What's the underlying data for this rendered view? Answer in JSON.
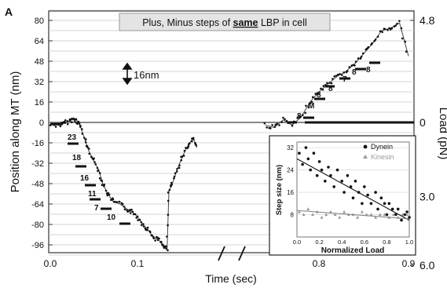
{
  "panel_label": "A",
  "title": "Plus, Minus steps of same LBP in cell",
  "title_parts": {
    "before": "Plus, Minus steps of ",
    "emph": "same",
    "after": " LBP in cell"
  },
  "scale_bar_label": "16nm",
  "chart_data": {
    "type": "line",
    "xlabel": "Time (sec)",
    "ylabel": "Position along MT (nm)",
    "y2label": "Load (pN)",
    "x_tick_labels": [
      "0.0",
      "0.1",
      "0.8",
      "0.9"
    ],
    "broken_x_axis": true,
    "y_ticks": [
      80,
      64,
      48,
      32,
      16,
      0,
      -16,
      -32,
      -48,
      -64,
      -80,
      -96
    ],
    "ylim": [
      -106,
      88
    ],
    "y2_ticks": [
      {
        "label": "4.8",
        "at_position_nm": 80
      },
      {
        "label": "0",
        "at_position_nm": 0
      },
      {
        "label": "3.0",
        "at_position_nm": -58
      },
      {
        "label": "6.0",
        "at_position_nm": -112
      }
    ],
    "grid": true,
    "step_size_labels": [
      "23",
      "18",
      "16",
      "11",
      "7",
      "10",
      "8",
      "M",
      "8",
      "8",
      "7",
      "8",
      "8"
    ],
    "series": [
      {
        "segment": "minus-steps",
        "x": [
          0.0,
          0.012,
          0.018,
          0.024,
          0.03,
          0.034,
          0.04,
          0.044,
          0.05,
          0.056,
          0.06,
          0.066,
          0.072,
          0.08,
          0.088,
          0.094,
          0.1,
          0.106,
          0.112,
          0.118,
          0.124,
          0.13,
          0.134
        ],
        "y": [
          -2,
          -2,
          0,
          2,
          2,
          -2,
          -14,
          -22,
          -30,
          -38,
          -48,
          -56,
          -62,
          -64,
          -68,
          -70,
          -74,
          -80,
          -84,
          -90,
          -92,
          -96,
          -100
        ]
      },
      {
        "segment": "recovery",
        "x": [
          0.134,
          0.136,
          0.14,
          0.146,
          0.152,
          0.158,
          0.164,
          0.168
        ],
        "y": [
          -100,
          -54,
          -48,
          -36,
          -26,
          -18,
          -12,
          -20
        ]
      },
      {
        "segment": "plus-steps",
        "x": [
          0.74,
          0.75,
          0.76,
          0.77,
          0.78,
          0.79,
          0.8,
          0.81,
          0.82,
          0.83,
          0.84,
          0.85,
          0.86,
          0.87,
          0.88,
          0.89,
          0.9
        ],
        "y": [
          -2,
          -4,
          2,
          -2,
          4,
          16,
          24,
          30,
          36,
          40,
          46,
          54,
          62,
          72,
          74,
          78,
          52
        ]
      }
    ],
    "inset": {
      "type": "scatter",
      "xlabel": "Normalized Load",
      "ylabel": "Step size (nm)",
      "xlim": [
        0.0,
        1.0
      ],
      "ylim": [
        0,
        34
      ],
      "x_ticks": [
        "0.0",
        "0.2",
        "0.4",
        "0.6",
        "0.8",
        "1.0"
      ],
      "y_ticks": [
        "8",
        "16",
        "24",
        "32"
      ],
      "legend": [
        "Dynein",
        "Kinesin"
      ],
      "series": [
        {
          "name": "Dynein",
          "x": [
            0.02,
            0.05,
            0.08,
            0.1,
            0.12,
            0.15,
            0.18,
            0.2,
            0.22,
            0.25,
            0.28,
            0.3,
            0.33,
            0.36,
            0.4,
            0.42,
            0.45,
            0.48,
            0.5,
            0.52,
            0.55,
            0.58,
            0.6,
            0.63,
            0.66,
            0.7,
            0.72,
            0.75,
            0.78,
            0.8,
            0.82,
            0.85,
            0.88,
            0.9,
            0.93,
            0.96,
            0.98,
            1.0
          ],
          "y": [
            30,
            26,
            32,
            28,
            24,
            30,
            22,
            27,
            24,
            20,
            25,
            22,
            18,
            24,
            20,
            16,
            22,
            18,
            14,
            20,
            16,
            12,
            18,
            15,
            12,
            16,
            10,
            14,
            12,
            8,
            12,
            10,
            8,
            10,
            6,
            8,
            9,
            7
          ]
        },
        {
          "name": "Kinesin",
          "x": [
            0.02,
            0.06,
            0.1,
            0.14,
            0.18,
            0.22,
            0.26,
            0.3,
            0.34,
            0.38,
            0.42,
            0.46,
            0.5,
            0.54,
            0.58,
            0.62,
            0.66,
            0.7,
            0.74,
            0.78,
            0.82,
            0.86,
            0.9,
            0.94,
            0.98
          ],
          "y": [
            9,
            8,
            10,
            8,
            9,
            7,
            8,
            9,
            8,
            7,
            9,
            8,
            8,
            7,
            9,
            8,
            8,
            7,
            8,
            8,
            7,
            8,
            7,
            8,
            8
          ]
        }
      ],
      "fits": [
        {
          "name": "Dynein",
          "x": [
            0.0,
            1.0
          ],
          "y": [
            28,
            6
          ]
        },
        {
          "name": "Kinesin",
          "x": [
            0.0,
            1.0
          ],
          "y": [
            9.5,
            6.5
          ]
        }
      ]
    }
  }
}
